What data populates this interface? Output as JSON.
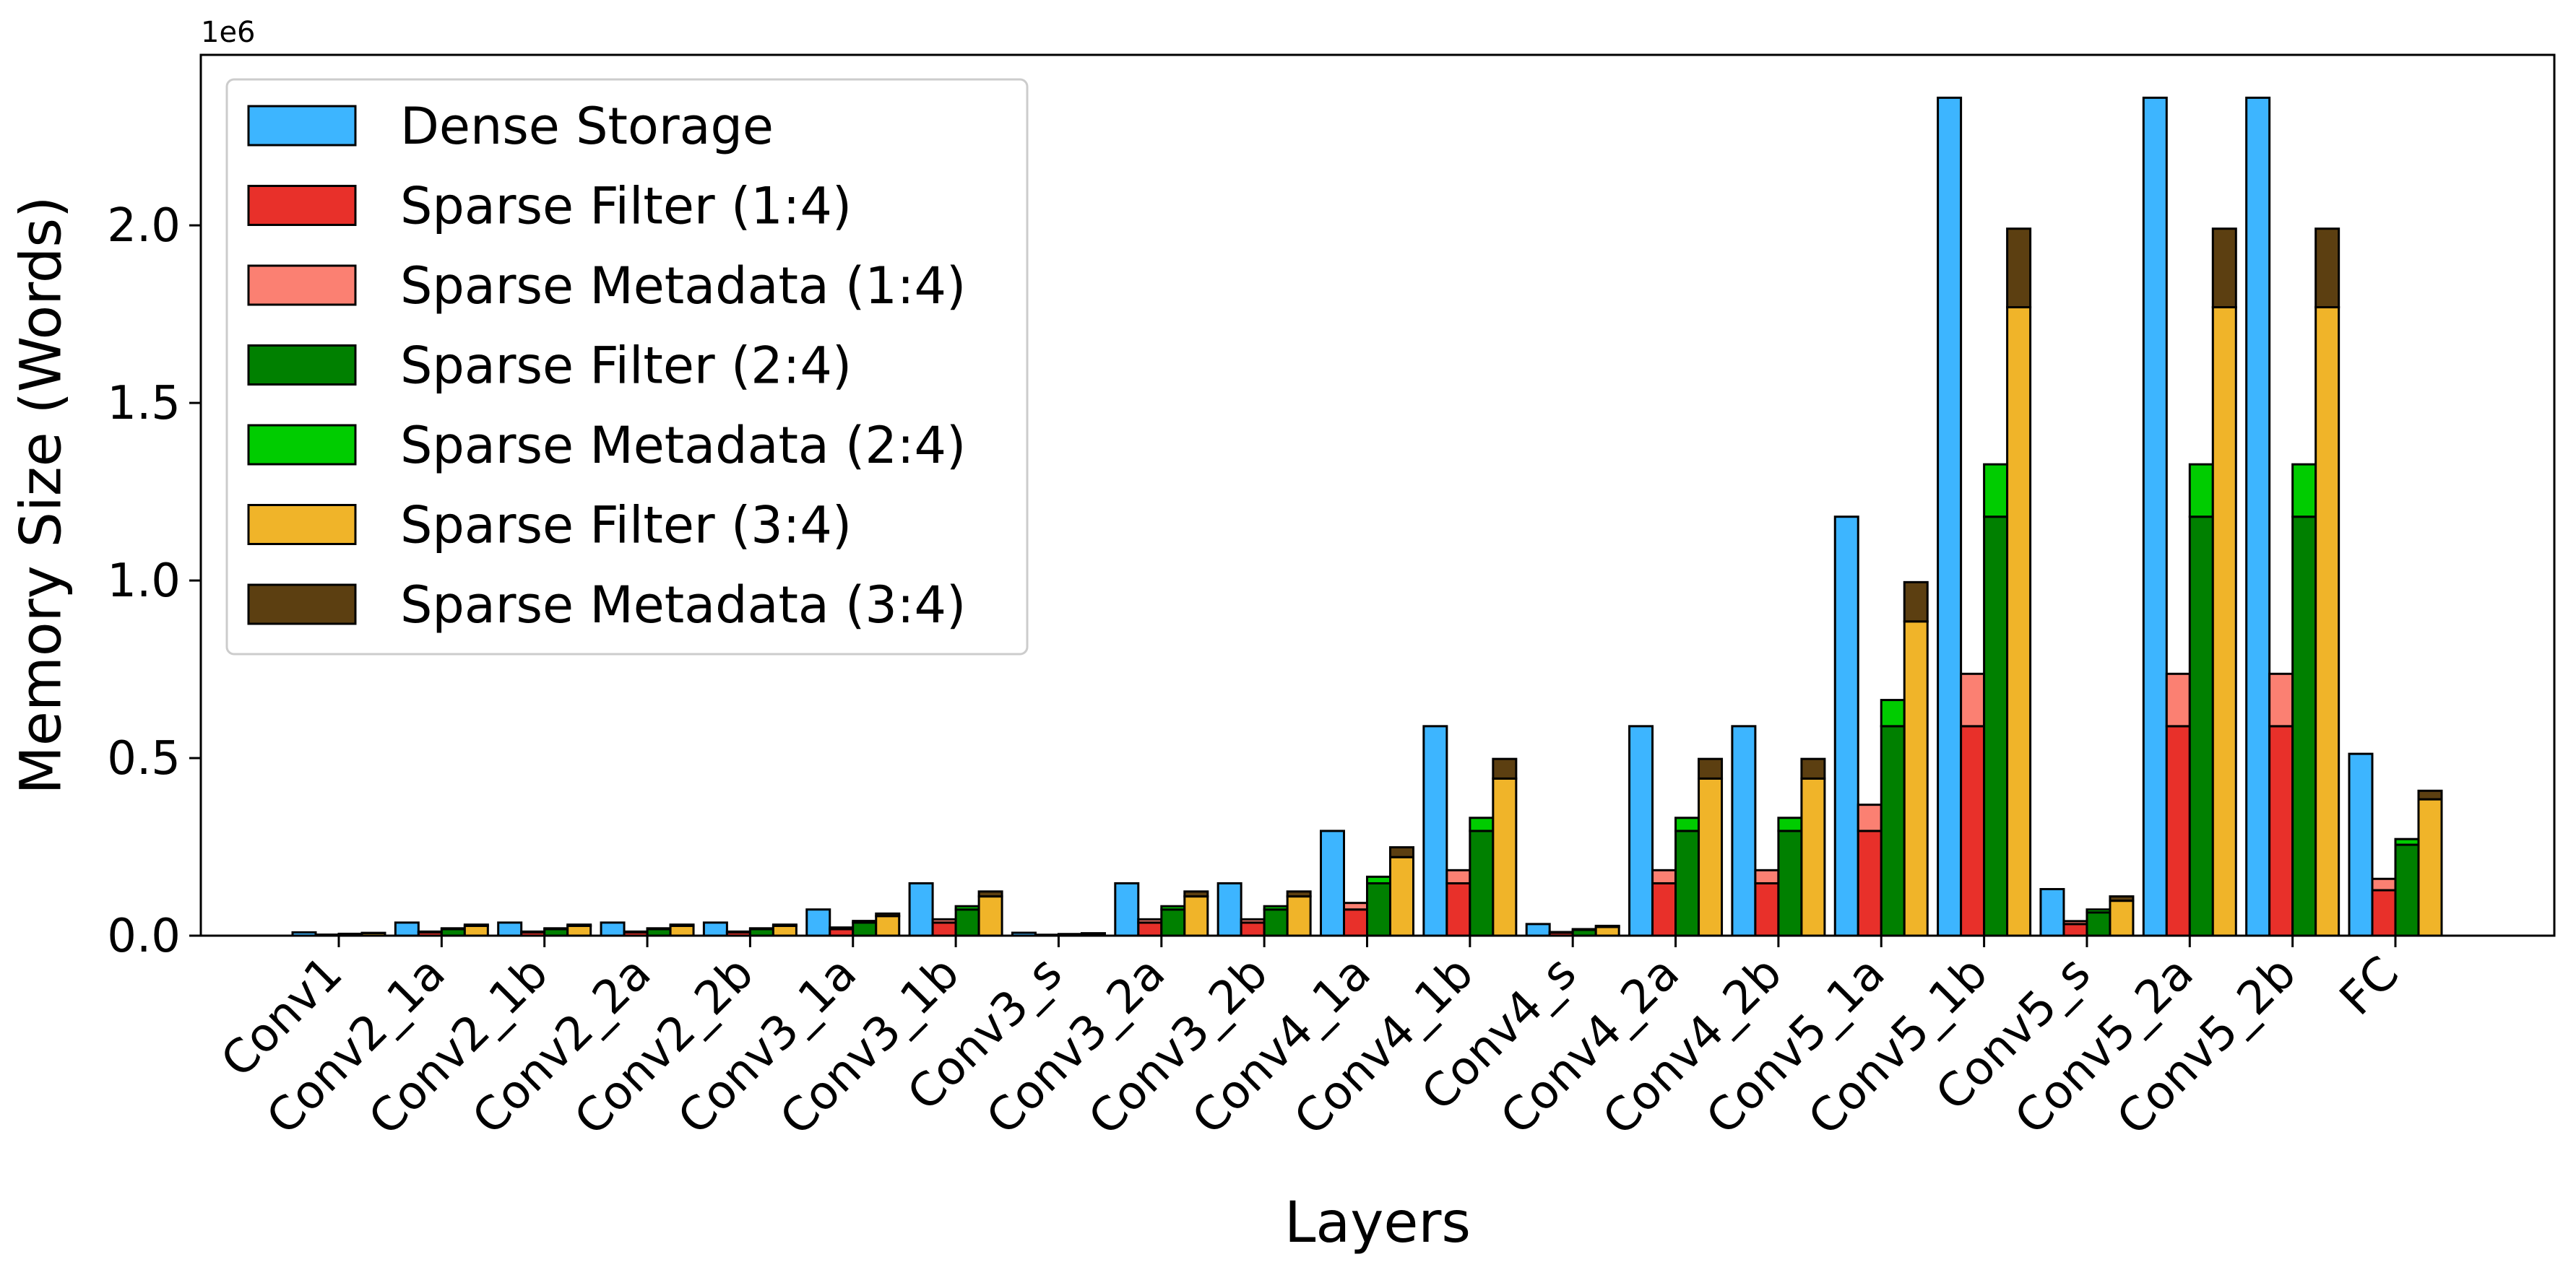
{
  "chart_data": {
    "type": "bar",
    "stacked_groups": true,
    "xlabel": "Layers",
    "ylabel": "Memory Size (Words)",
    "y_offset_label": "1e6",
    "y_scale": 1000000,
    "ylim": [
      0,
      2480000
    ],
    "yticks": [
      0,
      500000,
      1000000,
      1500000,
      2000000
    ],
    "ytick_labels": [
      "0.0",
      "0.5",
      "1.0",
      "1.5",
      "2.0"
    ],
    "grid": false,
    "legend_position": "upper-left",
    "categories": [
      "Conv1",
      "Conv2_1a",
      "Conv2_1b",
      "Conv2_2a",
      "Conv2_2b",
      "Conv3_1a",
      "Conv3_1b",
      "Conv3_s",
      "Conv3_2a",
      "Conv3_2b",
      "Conv4_1a",
      "Conv4_1b",
      "Conv4_s",
      "Conv4_2a",
      "Conv4_2b",
      "Conv5_1a",
      "Conv5_1b",
      "Conv5_s",
      "Conv5_2a",
      "Conv5_2b",
      "FC"
    ],
    "series": [
      {
        "name": "Dense Storage",
        "color": "#3db5ff",
        "group": "dense",
        "values": [
          9408,
          36864,
          36864,
          36864,
          36864,
          73728,
          147456,
          8192,
          147456,
          147456,
          294912,
          589824,
          32768,
          589824,
          589824,
          1179648,
          2359296,
          131072,
          2359296,
          2359296,
          512000
        ]
      },
      {
        "name": "Sparse Filter (1:4)",
        "color": "#e8302a",
        "group": "1:4",
        "values": [
          2352,
          9216,
          9216,
          9216,
          9216,
          18432,
          36864,
          2048,
          36864,
          36864,
          73728,
          147456,
          8192,
          147456,
          147456,
          294912,
          589824,
          32768,
          589824,
          589824,
          128000
        ]
      },
      {
        "name": "Sparse Metadata (1:4)",
        "color": "#fb8072",
        "group": "1:4",
        "values": [
          588,
          2304,
          2304,
          2304,
          2304,
          4608,
          9216,
          512,
          9216,
          9216,
          18432,
          36864,
          2048,
          36864,
          36864,
          73728,
          147456,
          8192,
          147456,
          147456,
          32000
        ]
      },
      {
        "name": "Sparse Filter (2:4)",
        "color": "#008000",
        "group": "2:4",
        "values": [
          4704,
          18432,
          18432,
          18432,
          18432,
          36864,
          73728,
          4096,
          73728,
          73728,
          147456,
          294912,
          16384,
          294912,
          294912,
          589824,
          1179648,
          65536,
          1179648,
          1179648,
          256000
        ]
      },
      {
        "name": "Sparse Metadata (2:4)",
        "color": "#00cc00",
        "group": "2:4",
        "values": [
          588,
          2304,
          2304,
          2304,
          2304,
          4608,
          9216,
          512,
          9216,
          9216,
          18432,
          36864,
          2048,
          36864,
          36864,
          73728,
          147456,
          8192,
          147456,
          147456,
          16000
        ]
      },
      {
        "name": "Sparse Filter (3:4)",
        "color": "#f0b429",
        "group": "3:4",
        "values": [
          7056,
          27648,
          27648,
          27648,
          27648,
          55296,
          110592,
          6144,
          110592,
          110592,
          221184,
          442368,
          24576,
          442368,
          442368,
          884736,
          1769472,
          98304,
          1769472,
          1769472,
          384000
        ]
      },
      {
        "name": "Sparse Metadata (3:4)",
        "color": "#5c3f11",
        "group": "3:4",
        "values": [
          882,
          3456,
          3456,
          3456,
          3456,
          6912,
          13824,
          768,
          13824,
          13824,
          27648,
          55296,
          3072,
          55296,
          55296,
          110592,
          221184,
          12288,
          221184,
          221184,
          24000
        ]
      }
    ]
  }
}
